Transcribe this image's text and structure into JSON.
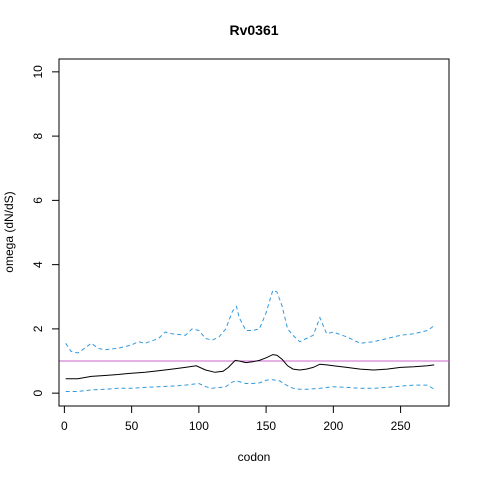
{
  "chart_data": {
    "type": "line",
    "title": "Rv0361",
    "xlabel": "codon",
    "ylabel": "omega (dN/dS)",
    "xlim": [
      -4,
      286
    ],
    "ylim": [
      -0.4,
      10.4
    ],
    "xticks": [
      "0",
      "50",
      "100",
      "150",
      "200",
      "250"
    ],
    "yticks": [
      "0",
      "2",
      "4",
      "6",
      "8",
      "10"
    ],
    "reference_line": {
      "y": 1.0,
      "color": "#cc66cc"
    },
    "grid": false,
    "series": [
      {
        "role": "estimate",
        "color": "#000000",
        "style": "solid",
        "x": [
          1,
          10,
          20,
          30,
          40,
          50,
          60,
          70,
          80,
          90,
          98,
          105,
          112,
          118,
          122,
          127,
          130,
          135,
          140,
          145,
          150,
          155,
          158,
          162,
          166,
          170,
          175,
          180,
          185,
          190,
          195,
          200,
          210,
          220,
          230,
          240,
          250,
          260,
          270,
          275
        ],
        "y": [
          0.45,
          0.45,
          0.52,
          0.55,
          0.58,
          0.62,
          0.65,
          0.7,
          0.75,
          0.8,
          0.85,
          0.72,
          0.65,
          0.68,
          0.8,
          1.02,
          1.0,
          0.95,
          0.98,
          1.02,
          1.1,
          1.2,
          1.18,
          1.05,
          0.85,
          0.75,
          0.72,
          0.75,
          0.8,
          0.9,
          0.88,
          0.85,
          0.8,
          0.75,
          0.72,
          0.75,
          0.8,
          0.82,
          0.85,
          0.88
        ]
      },
      {
        "role": "upper bound",
        "color": "#3399dd",
        "style": "dashed",
        "x": [
          1,
          5,
          10,
          15,
          20,
          25,
          30,
          40,
          50,
          55,
          60,
          70,
          75,
          80,
          90,
          95,
          100,
          105,
          110,
          115,
          120,
          125,
          128,
          130,
          135,
          140,
          145,
          150,
          155,
          158,
          162,
          166,
          170,
          175,
          180,
          185,
          190,
          195,
          200,
          210,
          220,
          230,
          240,
          250,
          260,
          270,
          275
        ],
        "y": [
          1.55,
          1.3,
          1.25,
          1.4,
          1.55,
          1.4,
          1.35,
          1.4,
          1.5,
          1.6,
          1.55,
          1.7,
          1.9,
          1.85,
          1.8,
          2.0,
          1.95,
          1.7,
          1.65,
          1.75,
          2.0,
          2.55,
          2.7,
          2.35,
          1.95,
          1.95,
          2.0,
          2.5,
          3.2,
          3.15,
          2.7,
          2.0,
          1.8,
          1.6,
          1.7,
          1.8,
          2.35,
          1.85,
          1.9,
          1.75,
          1.55,
          1.6,
          1.7,
          1.8,
          1.85,
          1.95,
          2.1
        ]
      },
      {
        "role": "lower bound",
        "color": "#3399dd",
        "style": "dashed",
        "x": [
          1,
          10,
          20,
          30,
          40,
          50,
          60,
          70,
          80,
          90,
          100,
          105,
          110,
          120,
          125,
          128,
          135,
          140,
          145,
          150,
          155,
          160,
          165,
          170,
          175,
          180,
          190,
          200,
          210,
          220,
          230,
          240,
          250,
          260,
          270,
          275
        ],
        "y": [
          0.05,
          0.05,
          0.1,
          0.12,
          0.15,
          0.15,
          0.18,
          0.2,
          0.22,
          0.25,
          0.3,
          0.2,
          0.15,
          0.2,
          0.35,
          0.38,
          0.3,
          0.3,
          0.32,
          0.4,
          0.42,
          0.38,
          0.25,
          0.15,
          0.12,
          0.12,
          0.15,
          0.2,
          0.18,
          0.15,
          0.15,
          0.18,
          0.22,
          0.25,
          0.25,
          0.12
        ]
      }
    ]
  }
}
